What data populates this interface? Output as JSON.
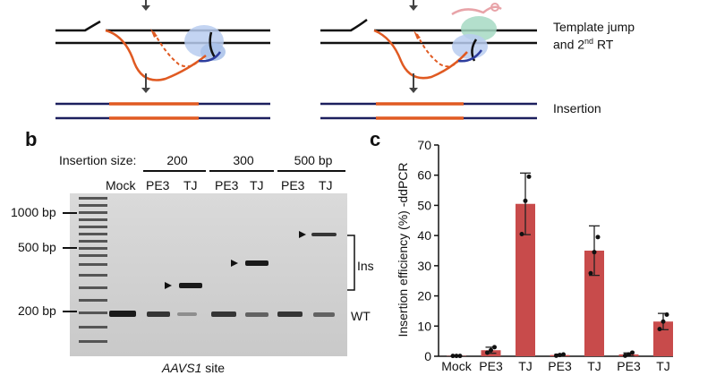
{
  "panel_a": {
    "label_template_jump": "Template jump",
    "label_second_rt_prefix": "and 2",
    "label_second_rt_sup": "nd",
    "label_second_rt_suffix": " RT",
    "label_insertion": "Insertion"
  },
  "panel_b": {
    "letter": "b",
    "insertion_size_label": "Insertion size:",
    "size_groups": [
      "200",
      "300",
      "500 bp"
    ],
    "lanes": [
      "Mock",
      "PE3",
      "TJ",
      "PE3",
      "TJ",
      "PE3",
      "TJ"
    ],
    "markers": [
      "1000 bp",
      "500 bp",
      "200 bp"
    ],
    "right_labels": {
      "ins": "Ins",
      "wt": "WT"
    },
    "caption_italic": "AAVS1",
    "caption_rest": " site"
  },
  "panel_c": {
    "letter": "c",
    "colors": {
      "bar": "#c84b4b",
      "errorbar": "#222222",
      "dot": "#111111"
    },
    "chart_data": {
      "type": "bar",
      "ylabel": "Insertion efficiency (%) -ddPCR",
      "xlabel": "",
      "categories": [
        "Mock",
        "PE3",
        "TJ",
        "PE3",
        "TJ",
        "PE3",
        "TJ"
      ],
      "values": [
        0.1,
        2.0,
        50.5,
        0.4,
        35.0,
        0.6,
        11.5
      ],
      "errors": [
        0.0,
        1.0,
        10.2,
        0.3,
        8.2,
        0.5,
        2.7
      ],
      "points": [
        [
          0.1,
          0.1,
          0.1
        ],
        [
          1.2,
          2.0,
          3.0
        ],
        [
          40.5,
          51.5,
          59.5
        ],
        [
          0.2,
          0.4,
          0.6
        ],
        [
          27.5,
          34.5,
          39.5
        ],
        [
          0.2,
          0.6,
          1.2
        ],
        [
          9.0,
          11.5,
          13.8
        ]
      ],
      "ylim": [
        0,
        70
      ],
      "yticks": [
        0,
        10,
        20,
        30,
        40,
        50,
        60,
        70
      ]
    }
  }
}
